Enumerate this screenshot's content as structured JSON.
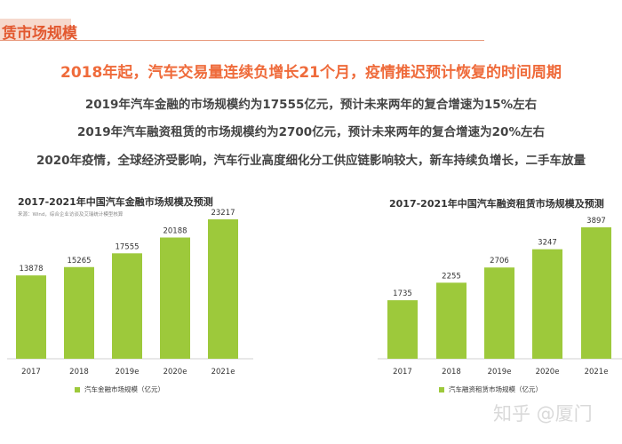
{
  "header": {
    "title": "赁市场规模"
  },
  "headline": "2018年起，汽车交易量连续负增长21个月，疫情推迟预计恢复的时间周期",
  "bullets": [
    "2019年汽车金融的市场规模约为17555亿元，预计未来两年的复合增速为15%左右",
    "2019年汽车融资租赁的市场规模约为2700亿元，预计未来两年的复合增速为20%左右",
    "2020年疫情，全球经济受影响，汽车行业高度细化分工供应链影响较大，新车持续负增长，二手车放量"
  ],
  "colors": {
    "bar": "#9dc93b",
    "accent": "#ef6b3b"
  },
  "chart_data": [
    {
      "type": "bar",
      "title": "2017-2021年中国汽车金融市场规模及预测",
      "source": "来源：Wind，综合企业访谈及艾瑞统计模型核算",
      "categories": [
        "2017",
        "2018",
        "2019e",
        "2020e",
        "2021e"
      ],
      "series": [
        {
          "name": "汽车金融市场规模（亿元）",
          "values": [
            13878,
            15265,
            17555,
            20188,
            23217
          ]
        }
      ],
      "xlabel": "",
      "ylabel": "",
      "ylim": [
        0,
        23217
      ],
      "grid": false,
      "legend": "bottom"
    },
    {
      "type": "bar",
      "title": "2017-2021年中国汽车融资租赁市场规模及预测",
      "categories": [
        "2017",
        "2018",
        "2019e",
        "2020e",
        "2021e"
      ],
      "series": [
        {
          "name": "汽车融资租赁市场规模（亿元）",
          "values": [
            1735,
            2255,
            2706,
            3247,
            3897
          ]
        }
      ],
      "xlabel": "",
      "ylabel": "",
      "ylim": [
        0,
        3897
      ],
      "grid": false,
      "legend": "bottom"
    }
  ],
  "watermark": "知乎 @厦门"
}
